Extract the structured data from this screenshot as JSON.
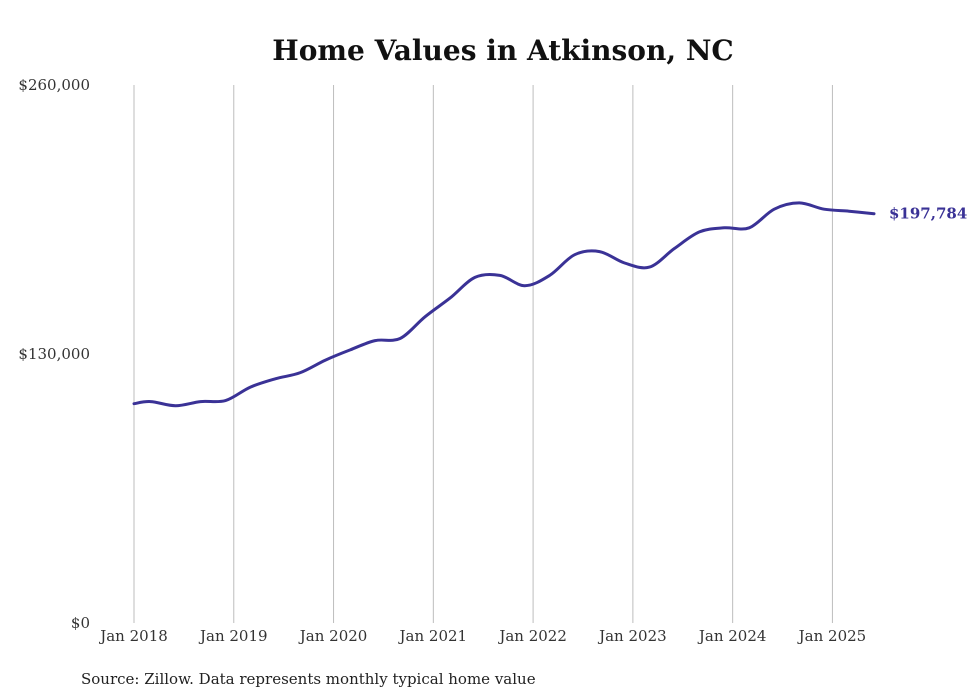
{
  "chart_data": {
    "type": "line",
    "title": "Home Values in Atkinson, NC",
    "xlabel": "",
    "ylabel": "",
    "x_range": [
      "2018-01",
      "2025-06"
    ],
    "ylim": [
      0,
      260000
    ],
    "y_ticks": [
      {
        "value": 0,
        "label": "$0"
      },
      {
        "value": 130000,
        "label": "$130,000"
      },
      {
        "value": 260000,
        "label": "$260,000"
      }
    ],
    "x_ticks": [
      {
        "date": "2018-01",
        "label": "Jan 2018"
      },
      {
        "date": "2019-01",
        "label": "Jan 2019"
      },
      {
        "date": "2020-01",
        "label": "Jan 2020"
      },
      {
        "date": "2021-01",
        "label": "Jan 2021"
      },
      {
        "date": "2022-01",
        "label": "Jan 2022"
      },
      {
        "date": "2023-01",
        "label": "Jan 2023"
      },
      {
        "date": "2024-01",
        "label": "Jan 2024"
      },
      {
        "date": "2025-01",
        "label": "Jan 2025"
      }
    ],
    "grid": "vertical",
    "line_color": "#3a3296",
    "end_label": "$197,784",
    "series": [
      {
        "points": [
          {
            "x": "2018-01",
            "y": 106000
          },
          {
            "x": "2018-03",
            "y": 107000
          },
          {
            "x": "2018-06",
            "y": 105000
          },
          {
            "x": "2018-09",
            "y": 107000
          },
          {
            "x": "2018-12",
            "y": 107500
          },
          {
            "x": "2019-03",
            "y": 114000
          },
          {
            "x": "2019-06",
            "y": 118000
          },
          {
            "x": "2019-09",
            "y": 121000
          },
          {
            "x": "2019-12",
            "y": 127000
          },
          {
            "x": "2020-03",
            "y": 132000
          },
          {
            "x": "2020-06",
            "y": 136500
          },
          {
            "x": "2020-09",
            "y": 137500
          },
          {
            "x": "2020-12",
            "y": 148000
          },
          {
            "x": "2021-03",
            "y": 157000
          },
          {
            "x": "2021-06",
            "y": 167000
          },
          {
            "x": "2021-09",
            "y": 168000
          },
          {
            "x": "2021-12",
            "y": 163000
          },
          {
            "x": "2022-03",
            "y": 168000
          },
          {
            "x": "2022-06",
            "y": 178000
          },
          {
            "x": "2022-09",
            "y": 179500
          },
          {
            "x": "2022-12",
            "y": 174000
          },
          {
            "x": "2023-03",
            "y": 172000
          },
          {
            "x": "2023-06",
            "y": 181000
          },
          {
            "x": "2023-09",
            "y": 189000
          },
          {
            "x": "2023-12",
            "y": 191000
          },
          {
            "x": "2024-03",
            "y": 191000
          },
          {
            "x": "2024-06",
            "y": 200000
          },
          {
            "x": "2024-09",
            "y": 203000
          },
          {
            "x": "2024-12",
            "y": 200000
          },
          {
            "x": "2025-03",
            "y": 199000
          },
          {
            "x": "2025-06",
            "y": 197784
          }
        ]
      }
    ]
  },
  "source_text": "Source: Zillow. Data represents monthly typical home value"
}
